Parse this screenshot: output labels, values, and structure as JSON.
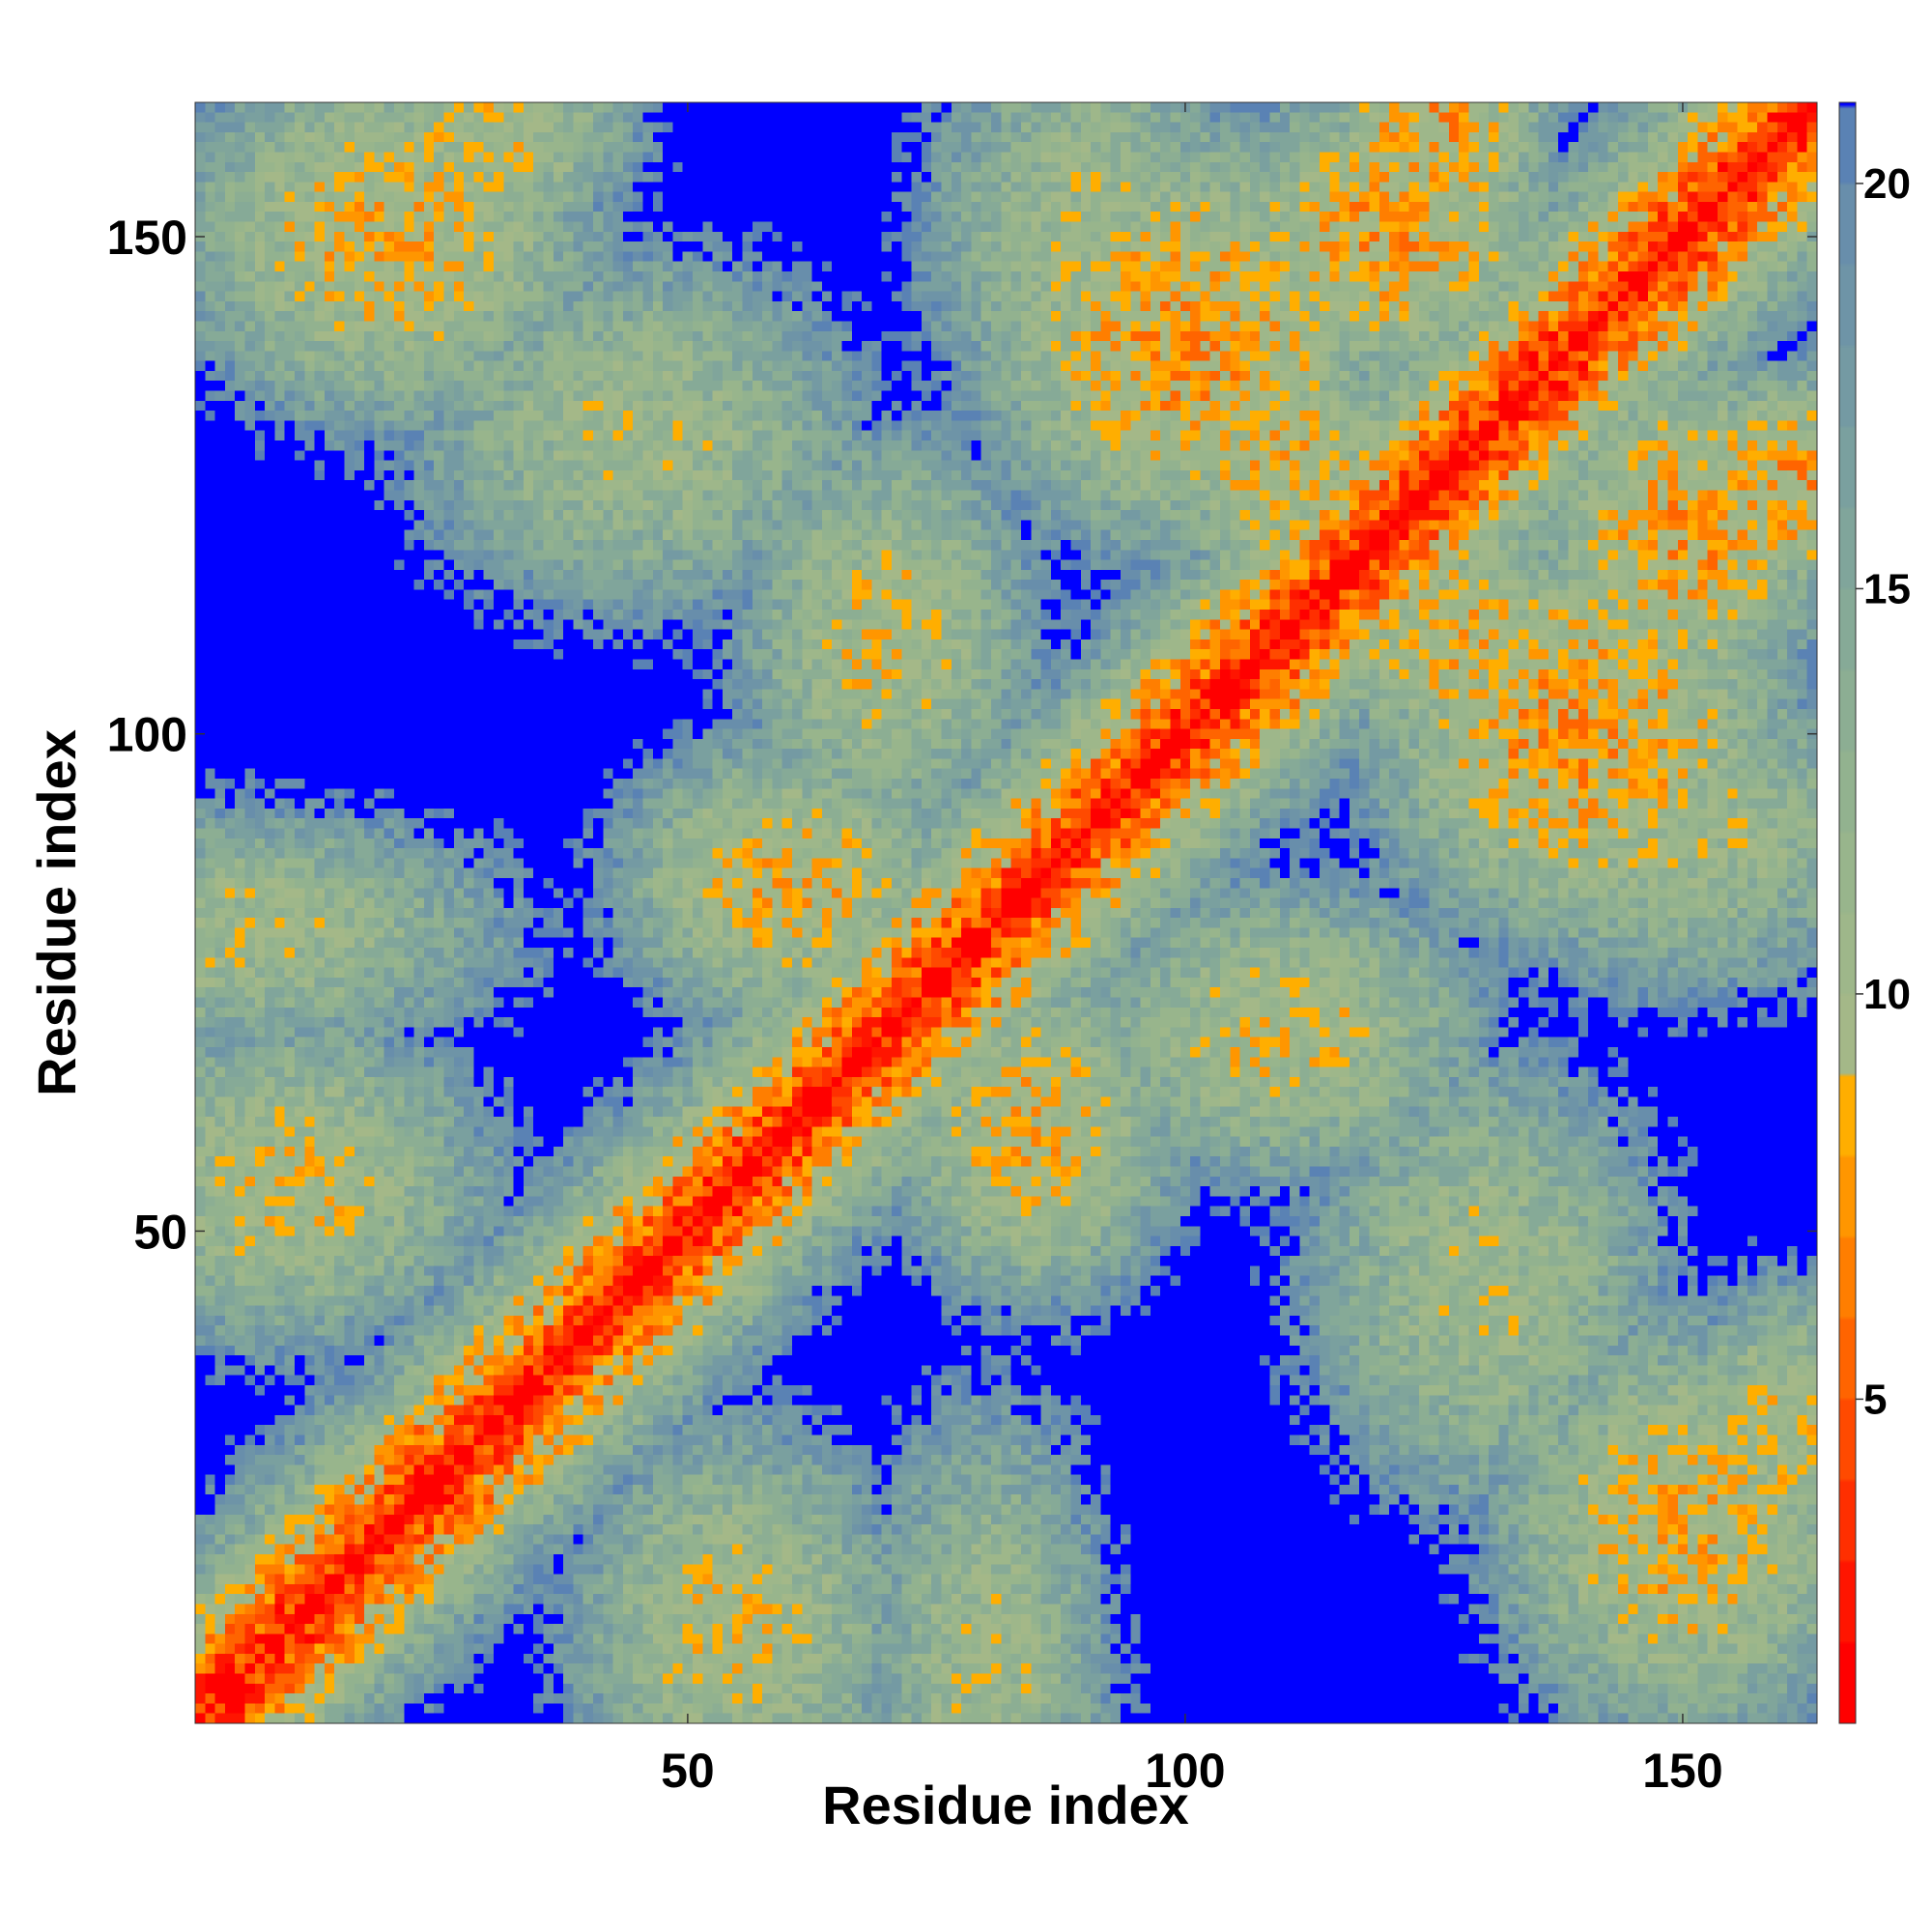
{
  "chart_data": {
    "type": "heatmap",
    "title": "",
    "xlabel": "Residue index",
    "ylabel": "Residue index",
    "n_residues": 163,
    "xlim": [
      1,
      163
    ],
    "ylim": [
      1,
      163
    ],
    "x_ticks": [
      50,
      100,
      150
    ],
    "y_ticks": [
      50,
      100,
      150
    ],
    "x_tick_labels": [
      "50",
      "100",
      "150"
    ],
    "y_tick_labels": [
      "50",
      "100",
      "150"
    ],
    "value_range": [
      1,
      21
    ],
    "colorbar": {
      "ticks": [
        5,
        10,
        15,
        20
      ],
      "tick_labels": [
        "5",
        "10",
        "15",
        "20"
      ],
      "levels": [
        1,
        2,
        3,
        4,
        5,
        6,
        7,
        8,
        9,
        10,
        11,
        12,
        13,
        14,
        15,
        16,
        17,
        18,
        19,
        20,
        21
      ],
      "colors": [
        "#ff0000",
        "#ff1500",
        "#ff2f00",
        "#ff4a00",
        "#ff6400",
        "#ff7e00",
        "#ff9600",
        "#ffae00",
        "#a4b888",
        "#9eb78a",
        "#98b58c",
        "#92b28f",
        "#8cae93",
        "#86aa97",
        "#80a59b",
        "#7aa09f",
        "#749aa3",
        "#6e94a7",
        "#688eab",
        "#5a82b4",
        "#0000ff"
      ]
    },
    "grid": false,
    "legend": "colorbar-right"
  }
}
